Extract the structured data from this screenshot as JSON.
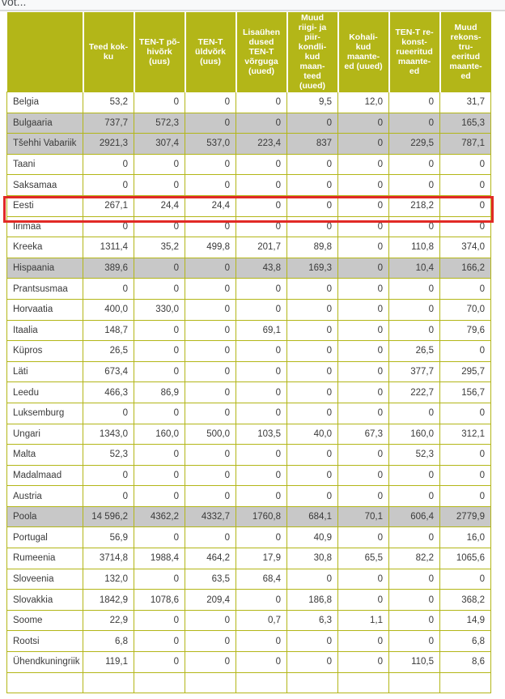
{
  "page": {
    "top_text": "vot...",
    "colors": {
      "olive": "#b3b618",
      "row_shaded": "#c8c8c8",
      "row_default": "#ffffff",
      "header_text": "#ffffff",
      "cell_text": "#3a3a3a",
      "highlight_border": "#e12a26",
      "top_strip": "#f8f9fa",
      "divider": "#d9dadb"
    }
  },
  "table": {
    "header": {
      "country_label": "",
      "columns": [
        "Teed kok-\nku",
        "TEN-T põ-\nhivõrk\n(uus)",
        "TEN-T\nüldvõrk\n(uus)",
        "Lisaühen\ndused\nTEN-T\nvõrguga\n(uued)",
        "Muud\nriigi- ja\npiir-\nkondli-\nkud\nmaan-\nteed\n(uued)",
        "Kohali-\nkud\nmaante-\ned (uued)",
        "TEN-T re-\nkonst-\nrueeritud\nmaante-\ned",
        "Muud\nrekons-\ntru-\neeritud\nmaante-\ned"
      ]
    },
    "rows": [
      {
        "country": "Belgia",
        "shaded": false,
        "highlighted": false,
        "values": [
          "53,2",
          "0",
          "0",
          "0",
          "9,5",
          "12,0",
          "0",
          "31,7"
        ]
      },
      {
        "country": "Bulgaaria",
        "shaded": true,
        "highlighted": false,
        "values": [
          "737,7",
          "572,3",
          "0",
          "0",
          "0",
          "0",
          "0",
          "165,3"
        ]
      },
      {
        "country": "Tšehhi Vabariik",
        "shaded": true,
        "highlighted": false,
        "values": [
          "2921,3",
          "307,4",
          "537,0",
          "223,4",
          "837",
          "0",
          "229,5",
          "787,1"
        ]
      },
      {
        "country": "Taani",
        "shaded": false,
        "highlighted": false,
        "values": [
          "0",
          "0",
          "0",
          "0",
          "0",
          "0",
          "0",
          "0"
        ]
      },
      {
        "country": "Saksamaa",
        "shaded": false,
        "highlighted": false,
        "values": [
          "0",
          "0",
          "0",
          "0",
          "0",
          "0",
          "0",
          "0"
        ]
      },
      {
        "country": "Eesti",
        "shaded": false,
        "highlighted": true,
        "values": [
          "267,1",
          "24,4",
          "24,4",
          "0",
          "0",
          "0",
          "218,2",
          "0"
        ]
      },
      {
        "country": "Iirimaa",
        "shaded": false,
        "highlighted": false,
        "values": [
          "0",
          "0",
          "0",
          "0",
          "0",
          "0",
          "0",
          "0"
        ]
      },
      {
        "country": "Kreeka",
        "shaded": false,
        "highlighted": false,
        "values": [
          "1311,4",
          "35,2",
          "499,8",
          "201,7",
          "89,8",
          "0",
          "110,8",
          "374,0"
        ]
      },
      {
        "country": "Hispaania",
        "shaded": true,
        "highlighted": false,
        "values": [
          "389,6",
          "0",
          "0",
          "43,8",
          "169,3",
          "0",
          "10,4",
          "166,2"
        ]
      },
      {
        "country": "Prantsusmaa",
        "shaded": false,
        "highlighted": false,
        "values": [
          "0",
          "0",
          "0",
          "0",
          "0",
          "0",
          "0",
          "0"
        ]
      },
      {
        "country": "Horvaatia",
        "shaded": false,
        "highlighted": false,
        "values": [
          "400,0",
          "330,0",
          "0",
          "0",
          "0",
          "0",
          "0",
          "70,0"
        ]
      },
      {
        "country": "Itaalia",
        "shaded": false,
        "highlighted": false,
        "values": [
          "148,7",
          "0",
          "0",
          "69,1",
          "0",
          "0",
          "0",
          "79,6"
        ]
      },
      {
        "country": "Küpros",
        "shaded": false,
        "highlighted": false,
        "values": [
          "26,5",
          "0",
          "0",
          "0",
          "0",
          "0",
          "26,5",
          "0"
        ]
      },
      {
        "country": "Läti",
        "shaded": false,
        "highlighted": false,
        "values": [
          "673,4",
          "0",
          "0",
          "0",
          "0",
          "0",
          "377,7",
          "295,7"
        ]
      },
      {
        "country": "Leedu",
        "shaded": false,
        "highlighted": false,
        "values": [
          "466,3",
          "86,9",
          "0",
          "0",
          "0",
          "0",
          "222,7",
          "156,7"
        ]
      },
      {
        "country": "Luksemburg",
        "shaded": false,
        "highlighted": false,
        "values": [
          "0",
          "0",
          "0",
          "0",
          "0",
          "0",
          "0",
          "0"
        ]
      },
      {
        "country": "Ungari",
        "shaded": false,
        "highlighted": false,
        "values": [
          "1343,0",
          "160,0",
          "500,0",
          "103,5",
          "40,0",
          "67,3",
          "160,0",
          "312,1"
        ]
      },
      {
        "country": "Malta",
        "shaded": false,
        "highlighted": false,
        "values": [
          "52,3",
          "0",
          "0",
          "0",
          "0",
          "0",
          "52,3",
          "0"
        ]
      },
      {
        "country": "Madalmaad",
        "shaded": false,
        "highlighted": false,
        "values": [
          "0",
          "0",
          "0",
          "0",
          "0",
          "0",
          "0",
          "0"
        ]
      },
      {
        "country": "Austria",
        "shaded": false,
        "highlighted": false,
        "values": [
          "0",
          "0",
          "0",
          "0",
          "0",
          "0",
          "0",
          "0"
        ]
      },
      {
        "country": "Poola",
        "shaded": true,
        "highlighted": false,
        "values": [
          "14 596,2",
          "4362,2",
          "4332,7",
          "1760,8",
          "684,1",
          "70,1",
          "606,4",
          "2779,9"
        ]
      },
      {
        "country": "Portugal",
        "shaded": false,
        "highlighted": false,
        "values": [
          "56,9",
          "0",
          "0",
          "0",
          "40,9",
          "0",
          "0",
          "16,0"
        ]
      },
      {
        "country": "Rumeenia",
        "shaded": false,
        "highlighted": false,
        "values": [
          "3714,8",
          "1988,4",
          "464,2",
          "17,9",
          "30,8",
          "65,5",
          "82,2",
          "1065,6"
        ]
      },
      {
        "country": "Sloveenia",
        "shaded": false,
        "highlighted": false,
        "values": [
          "132,0",
          "0",
          "63,5",
          "68,4",
          "0",
          "0",
          "0",
          "0"
        ]
      },
      {
        "country": "Slovakkia",
        "shaded": false,
        "highlighted": false,
        "values": [
          "1842,9",
          "1078,6",
          "209,4",
          "0",
          "186,8",
          "0",
          "0",
          "368,2"
        ]
      },
      {
        "country": "Soome",
        "shaded": false,
        "highlighted": false,
        "values": [
          "22,9",
          "0",
          "0",
          "0,7",
          "6,3",
          "1,1",
          "0",
          "14,9"
        ]
      },
      {
        "country": "Rootsi",
        "shaded": false,
        "highlighted": false,
        "values": [
          "6,8",
          "0",
          "0",
          "0",
          "0",
          "0",
          "0",
          "6,8"
        ]
      },
      {
        "country": "Ühendkuningriik",
        "shaded": false,
        "highlighted": false,
        "values": [
          "119,1",
          "0",
          "0",
          "0",
          "0",
          "0",
          "110,5",
          "8,6"
        ]
      }
    ]
  }
}
